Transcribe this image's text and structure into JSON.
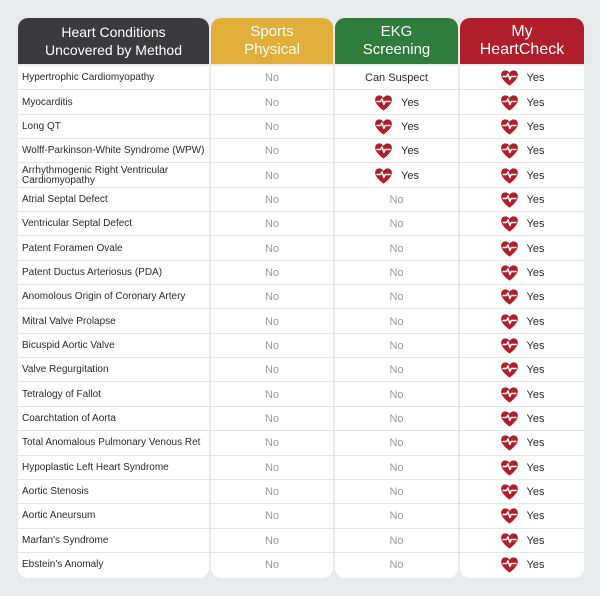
{
  "header": {
    "col1": [
      "Heart Conditions",
      "Uncovered by Method"
    ],
    "col2": [
      "Sports",
      "Physical"
    ],
    "col3": [
      "EKG",
      "Screening"
    ],
    "col4": [
      "My",
      "HeartCheck"
    ]
  },
  "colors": {
    "sports": "#e2ae3a",
    "ekg": "#2f7d3b",
    "my_heartcheck": "#b01f29",
    "condition_header": "#3b3b3d"
  },
  "icons": {
    "positive": "heart-pulse-icon"
  },
  "rows": [
    {
      "condition": "Hypertrophic Cardiomyopathy",
      "sports": "No",
      "ekg": "Can Suspect",
      "my_heartcheck": "Yes"
    },
    {
      "condition": "Myocarditis",
      "sports": "No",
      "ekg": "Yes",
      "my_heartcheck": "Yes"
    },
    {
      "condition": "Long QT",
      "sports": "No",
      "ekg": "Yes",
      "my_heartcheck": "Yes"
    },
    {
      "condition": "Wolff-Parkinson-White Syndrome (WPW)",
      "sports": "No",
      "ekg": "Yes",
      "my_heartcheck": "Yes"
    },
    {
      "condition": "Arrhythmogenic Right Ventricular Cardiomyopathy",
      "sports": "No",
      "ekg": "Yes",
      "my_heartcheck": "Yes"
    },
    {
      "condition": "Atrial Septal Defect",
      "sports": "No",
      "ekg": "No",
      "my_heartcheck": "Yes"
    },
    {
      "condition": "Ventricular Septal Defect",
      "sports": "No",
      "ekg": "No",
      "my_heartcheck": "Yes"
    },
    {
      "condition": "Patent Foramen Ovale",
      "sports": "No",
      "ekg": "No",
      "my_heartcheck": "Yes"
    },
    {
      "condition": "Patent Ductus Arteriosus (PDA)",
      "sports": "No",
      "ekg": "No",
      "my_heartcheck": "Yes"
    },
    {
      "condition": "Anomolous Origin of Coronary Artery",
      "sports": "No",
      "ekg": "No",
      "my_heartcheck": "Yes"
    },
    {
      "condition": "Mitral Valve Prolapse",
      "sports": "No",
      "ekg": "No",
      "my_heartcheck": "Yes"
    },
    {
      "condition": "Bicuspid Aortic Valve",
      "sports": "No",
      "ekg": "No",
      "my_heartcheck": "Yes"
    },
    {
      "condition": "Valve Regurgitation",
      "sports": "No",
      "ekg": "No",
      "my_heartcheck": "Yes"
    },
    {
      "condition": "Tetralogy of Fallot",
      "sports": "No",
      "ekg": "No",
      "my_heartcheck": "Yes"
    },
    {
      "condition": "Coarchtation of Aorta",
      "sports": "No",
      "ekg": "No",
      "my_heartcheck": "Yes"
    },
    {
      "condition": "Total Anomalous Pulmonary Venous Ret",
      "sports": "No",
      "ekg": "No",
      "my_heartcheck": "Yes"
    },
    {
      "condition": "Hypoplastic Left Heart Syndrome",
      "sports": "No",
      "ekg": "No",
      "my_heartcheck": "Yes"
    },
    {
      "condition": "Aortic Stenosis",
      "sports": "No",
      "ekg": "No",
      "my_heartcheck": "Yes"
    },
    {
      "condition": "Aortic Aneursum",
      "sports": "No",
      "ekg": "No",
      "my_heartcheck": "Yes"
    },
    {
      "condition": "Marfan's Syndrome",
      "sports": "No",
      "ekg": "No",
      "my_heartcheck": "Yes"
    },
    {
      "condition": "Ebstein's Anomaly",
      "sports": "No",
      "ekg": "No",
      "my_heartcheck": "Yes"
    }
  ]
}
